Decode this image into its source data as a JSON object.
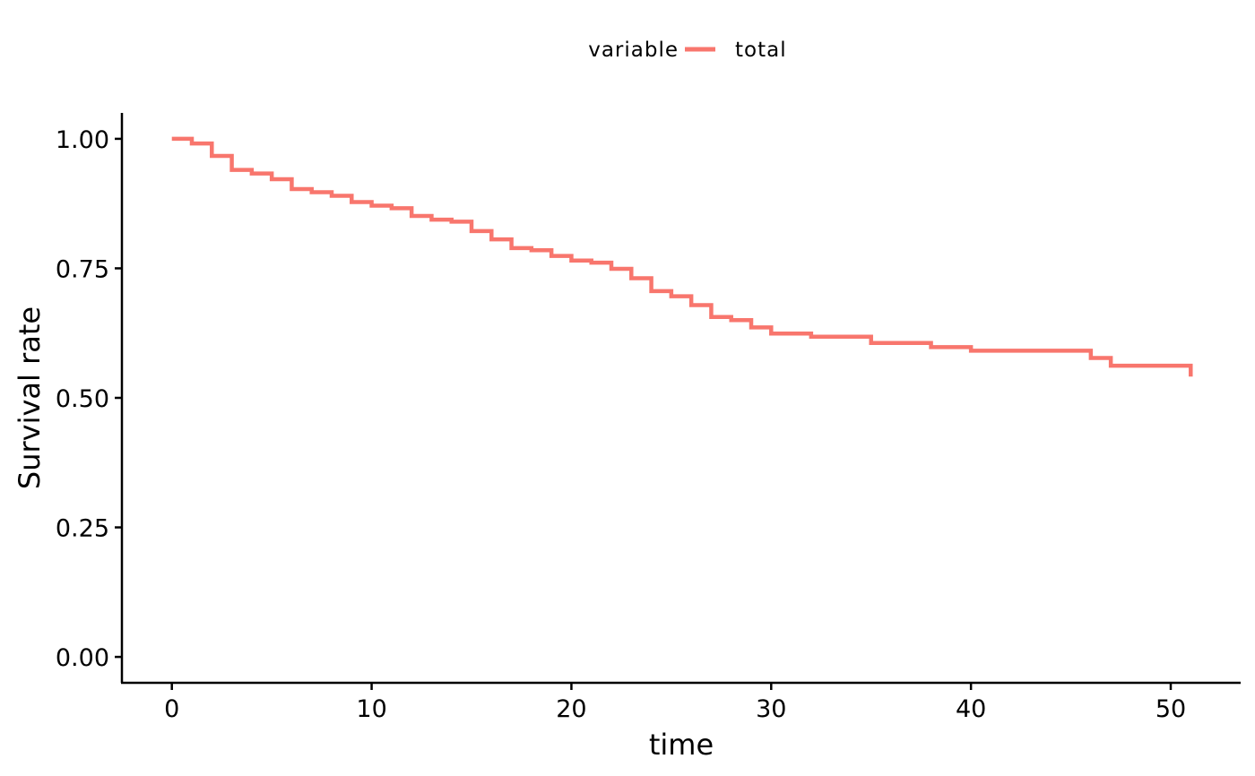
{
  "chart_data": {
    "type": "line",
    "xlabel": "time",
    "ylabel": "Survival rate",
    "xlim": [
      -2.5,
      53.5
    ],
    "ylim": [
      -0.05,
      1.05
    ],
    "x_ticks": [
      0,
      10,
      20,
      30,
      40,
      50
    ],
    "x_tick_labels": [
      "0",
      "10",
      "20",
      "30",
      "40",
      "50"
    ],
    "y_ticks": [
      0,
      0.25,
      0.5,
      0.75,
      1.0
    ],
    "y_tick_labels": [
      "0.00",
      "0.25",
      "0.50",
      "0.75",
      "1.00"
    ],
    "grid": false,
    "legend": {
      "title": "variable",
      "placement": "top"
    },
    "series": [
      {
        "name": "total",
        "color": "#F8766D",
        "step": true,
        "x": [
          0,
          1,
          2,
          3,
          4,
          5,
          6,
          7,
          8,
          9,
          10,
          11,
          12,
          13,
          14,
          15,
          16,
          17,
          18,
          19,
          20,
          21,
          22,
          23,
          24,
          25,
          26,
          27,
          28,
          29,
          30,
          32,
          35,
          38,
          40,
          46,
          47,
          51
        ],
        "y": [
          1.0,
          0.991,
          0.967,
          0.94,
          0.933,
          0.922,
          0.903,
          0.897,
          0.89,
          0.878,
          0.871,
          0.866,
          0.851,
          0.844,
          0.84,
          0.822,
          0.806,
          0.789,
          0.785,
          0.774,
          0.765,
          0.761,
          0.749,
          0.731,
          0.706,
          0.696,
          0.679,
          0.656,
          0.65,
          0.636,
          0.624,
          0.618,
          0.606,
          0.598,
          0.591,
          0.577,
          0.562,
          0.541
        ]
      }
    ]
  }
}
